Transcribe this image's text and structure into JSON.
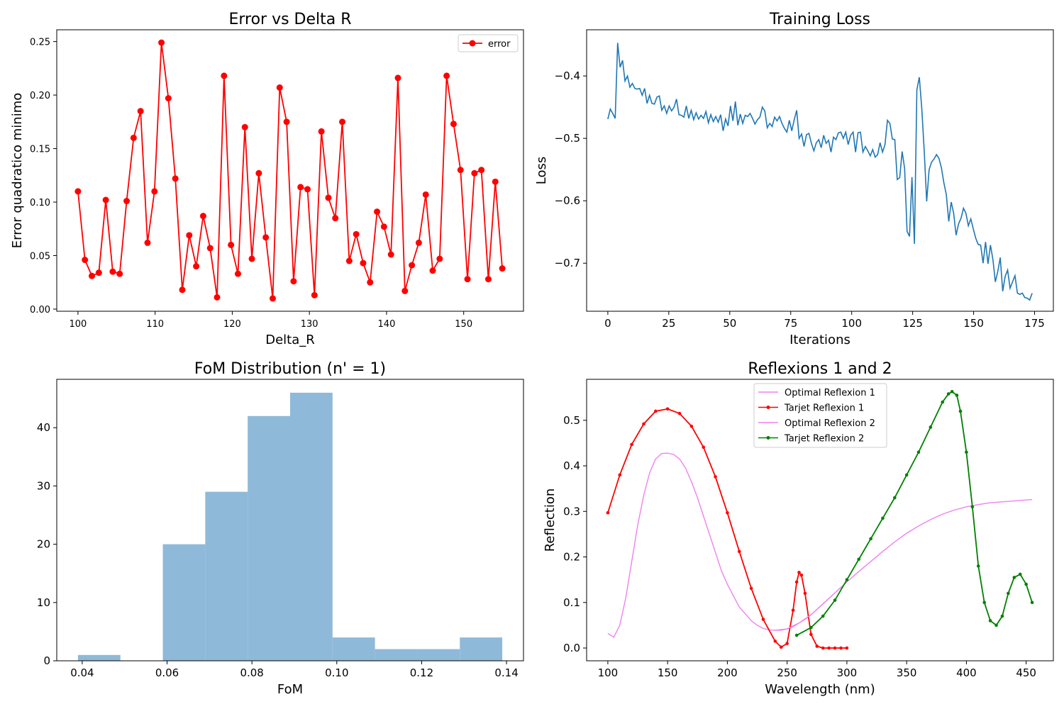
{
  "chart_data": [
    {
      "type": "line",
      "title": "Error vs Delta R",
      "xlabel": "Delta_R",
      "ylabel": "Error quadratico minimo",
      "xlim": [
        97.25,
        157.75
      ],
      "ylim": [
        -0.002,
        0.261
      ],
      "xticks": [
        100,
        110,
        120,
        130,
        140,
        150
      ],
      "yticks": [
        0.0,
        0.05,
        0.1,
        0.15,
        0.2,
        0.25
      ],
      "ytick_labels": [
        "0.00",
        "0.05",
        "0.10",
        "0.15",
        "0.20",
        "0.25"
      ],
      "legend": "top-right",
      "series": [
        {
          "name": "error",
          "color": "#ff0000",
          "marker": "circle",
          "x_start": 100,
          "x_end": 155,
          "values": [
            0.11,
            0.046,
            0.031,
            0.034,
            0.102,
            0.035,
            0.033,
            0.101,
            0.16,
            0.185,
            0.062,
            0.11,
            0.249,
            0.197,
            0.122,
            0.018,
            0.069,
            0.04,
            0.087,
            0.057,
            0.011,
            0.218,
            0.06,
            0.033,
            0.17,
            0.047,
            0.127,
            0.067,
            0.01,
            0.207,
            0.175,
            0.026,
            0.114,
            0.112,
            0.013,
            0.166,
            0.104,
            0.085,
            0.175,
            0.045,
            0.07,
            0.043,
            0.025,
            0.091,
            0.077,
            0.051,
            0.216,
            0.017,
            0.041,
            0.062,
            0.107,
            0.036,
            0.047,
            0.218,
            0.173,
            0.13,
            0.028,
            0.127,
            0.13,
            0.028,
            0.119,
            0.038
          ]
        }
      ]
    },
    {
      "type": "line",
      "title": "Training Loss",
      "xlabel": "Iterations",
      "ylabel": "Loss",
      "xlim": [
        -8.7,
        182.7
      ],
      "ylim": [
        -0.777,
        -0.326
      ],
      "xticks": [
        0,
        25,
        50,
        75,
        100,
        125,
        150,
        175
      ],
      "yticks": [
        -0.4,
        -0.5,
        -0.6,
        -0.7
      ],
      "ytick_labels": [
        "−0.4",
        "−0.5",
        "−0.6",
        "−0.7"
      ],
      "series": [
        {
          "name": "loss",
          "color": "#1f77b4",
          "x_start": 0,
          "x_end": 174,
          "values": [
            -0.469,
            -0.453,
            -0.46,
            -0.468,
            -0.347,
            -0.386,
            -0.375,
            -0.408,
            -0.4,
            -0.418,
            -0.412,
            -0.42,
            -0.421,
            -0.42,
            -0.431,
            -0.42,
            -0.444,
            -0.431,
            -0.444,
            -0.445,
            -0.434,
            -0.432,
            -0.455,
            -0.448,
            -0.46,
            -0.448,
            -0.456,
            -0.45,
            -0.437,
            -0.462,
            -0.463,
            -0.466,
            -0.448,
            -0.468,
            -0.455,
            -0.47,
            -0.459,
            -0.469,
            -0.463,
            -0.468,
            -0.457,
            -0.475,
            -0.462,
            -0.473,
            -0.465,
            -0.474,
            -0.462,
            -0.488,
            -0.469,
            -0.48,
            -0.448,
            -0.472,
            -0.441,
            -0.479,
            -0.461,
            -0.476,
            -0.463,
            -0.465,
            -0.46,
            -0.468,
            -0.477,
            -0.47,
            -0.466,
            -0.45,
            -0.456,
            -0.483,
            -0.476,
            -0.481,
            -0.466,
            -0.472,
            -0.465,
            -0.476,
            -0.484,
            -0.49,
            -0.471,
            -0.488,
            -0.47,
            -0.455,
            -0.5,
            -0.493,
            -0.513,
            -0.494,
            -0.492,
            -0.508,
            -0.52,
            -0.507,
            -0.502,
            -0.515,
            -0.495,
            -0.508,
            -0.503,
            -0.522,
            -0.498,
            -0.502,
            -0.491,
            -0.49,
            -0.5,
            -0.49,
            -0.51,
            -0.495,
            -0.49,
            -0.522,
            -0.491,
            -0.49,
            -0.522,
            -0.513,
            -0.52,
            -0.528,
            -0.518,
            -0.53,
            -0.526,
            -0.507,
            -0.522,
            -0.51,
            -0.471,
            -0.476,
            -0.501,
            -0.502,
            -0.566,
            -0.563,
            -0.521,
            -0.548,
            -0.649,
            -0.657,
            -0.562,
            -0.669,
            -0.422,
            -0.402,
            -0.452,
            -0.52,
            -0.601,
            -0.55,
            -0.538,
            -0.533,
            -0.526,
            -0.532,
            -0.547,
            -0.571,
            -0.59,
            -0.633,
            -0.602,
            -0.62,
            -0.655,
            -0.637,
            -0.628,
            -0.612,
            -0.62,
            -0.64,
            -0.629,
            -0.645,
            -0.66,
            -0.67,
            -0.671,
            -0.7,
            -0.666,
            -0.701,
            -0.671,
            -0.694,
            -0.73,
            -0.713,
            -0.691,
            -0.745,
            -0.721,
            -0.711,
            -0.74,
            -0.73,
            -0.72,
            -0.748,
            -0.75,
            -0.748,
            -0.755,
            -0.756,
            -0.759,
            -0.748
          ]
        }
      ]
    },
    {
      "type": "bar",
      "title": "FoM Distribution (n' = 1)",
      "xlabel": "FoM",
      "ylabel": "",
      "xlim": [
        0.034,
        0.144
      ],
      "ylim": [
        0,
        48.3
      ],
      "xticks": [
        0.04,
        0.06,
        0.08,
        0.1,
        0.12,
        0.14
      ],
      "xtick_labels": [
        "0.04",
        "0.06",
        "0.08",
        "0.10",
        "0.12",
        "0.14"
      ],
      "yticks": [
        0,
        10,
        20,
        30,
        40
      ],
      "color": "#8fb9d9",
      "bin_edges": [
        0.039,
        0.049,
        0.059,
        0.069,
        0.079,
        0.089,
        0.099,
        0.109,
        0.119,
        0.129,
        0.139
      ],
      "values": [
        1,
        0,
        20,
        29,
        42,
        46,
        4,
        2,
        2,
        4
      ]
    },
    {
      "type": "line",
      "title": "Reflexions 1 and 2",
      "xlabel": "Wavelength (nm)",
      "ylabel": "Reflection",
      "xlim": [
        82.25,
        472.75
      ],
      "ylim": [
        -0.028,
        0.59
      ],
      "xticks": [
        100,
        150,
        200,
        250,
        300,
        350,
        400,
        450
      ],
      "yticks": [
        0.0,
        0.1,
        0.2,
        0.3,
        0.4,
        0.5
      ],
      "ytick_labels": [
        "0.0",
        "0.1",
        "0.2",
        "0.3",
        "0.4",
        "0.5"
      ],
      "legend": "top-center",
      "series": [
        {
          "name": "Optimal Reflexion 1",
          "color": "#ee82ee",
          "marker": "none",
          "x": [
            100,
            105,
            110,
            115,
            120,
            125,
            130,
            135,
            140,
            145,
            150,
            155,
            160,
            165,
            170,
            175,
            180,
            185,
            190,
            195,
            200,
            205,
            210,
            215,
            220,
            225,
            230,
            235,
            240,
            245,
            250,
            255,
            260,
            265,
            270,
            275,
            280,
            285,
            290,
            295,
            300
          ],
          "values": [
            0.032,
            0.024,
            0.05,
            0.11,
            0.19,
            0.27,
            0.335,
            0.385,
            0.415,
            0.427,
            0.428,
            0.425,
            0.415,
            0.395,
            0.365,
            0.33,
            0.29,
            0.25,
            0.21,
            0.17,
            0.14,
            0.115,
            0.09,
            0.075,
            0.06,
            0.05,
            0.043,
            0.04,
            0.039,
            0.039,
            0.042,
            0.047,
            0.055,
            0.063,
            0.073,
            0.085,
            0.097,
            0.109,
            0.121,
            0.133,
            0.145
          ]
        },
        {
          "name": "Tarjet Reflexion 1",
          "color": "#ff0000",
          "marker": "circle",
          "x": [
            100,
            110,
            120,
            130,
            140,
            150,
            160,
            170,
            180,
            190,
            200,
            210,
            220,
            230,
            240,
            245,
            250,
            255,
            258,
            260,
            262,
            265,
            270,
            275,
            280,
            285,
            290,
            295,
            300
          ],
          "values": [
            0.297,
            0.38,
            0.447,
            0.492,
            0.52,
            0.525,
            0.515,
            0.487,
            0.441,
            0.376,
            0.297,
            0.212,
            0.131,
            0.063,
            0.015,
            0.002,
            0.01,
            0.083,
            0.145,
            0.166,
            0.16,
            0.12,
            0.03,
            0.004,
            0.0,
            0.0,
            0.0,
            0.0,
            0.0
          ]
        },
        {
          "name": "Optimal Reflexion 2",
          "color": "#ee82ee",
          "marker": "none",
          "x": [
            240,
            250,
            260,
            270,
            280,
            290,
            300,
            310,
            320,
            330,
            340,
            350,
            360,
            370,
            380,
            390,
            400,
            410,
            420,
            430,
            440,
            450,
            455
          ],
          "values": [
            0.039,
            0.042,
            0.055,
            0.073,
            0.097,
            0.121,
            0.145,
            0.168,
            0.19,
            0.212,
            0.233,
            0.252,
            0.268,
            0.282,
            0.294,
            0.303,
            0.31,
            0.315,
            0.319,
            0.321,
            0.323,
            0.325,
            0.326
          ]
        },
        {
          "name": "Tarjet Reflexion 2",
          "color": "#008000",
          "marker": "circle",
          "x": [
            258,
            270,
            280,
            290,
            300,
            310,
            320,
            330,
            340,
            350,
            360,
            370,
            380,
            385,
            388,
            392,
            395,
            400,
            405,
            410,
            415,
            420,
            425,
            430,
            435,
            440,
            445,
            450,
            455
          ],
          "values": [
            0.028,
            0.045,
            0.07,
            0.105,
            0.15,
            0.195,
            0.24,
            0.285,
            0.33,
            0.38,
            0.43,
            0.485,
            0.54,
            0.558,
            0.563,
            0.555,
            0.52,
            0.43,
            0.31,
            0.18,
            0.1,
            0.06,
            0.05,
            0.07,
            0.12,
            0.155,
            0.162,
            0.14,
            0.1
          ]
        }
      ]
    }
  ]
}
